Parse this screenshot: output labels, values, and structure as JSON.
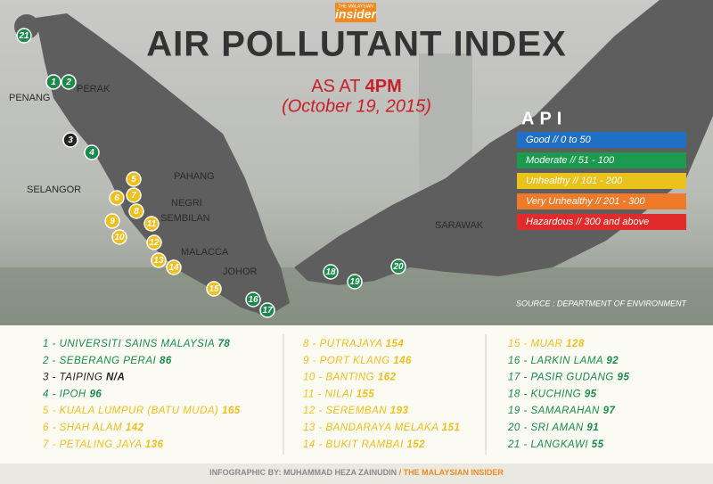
{
  "header": {
    "brand_small": "THE MALAYSIAN",
    "brand": "insider",
    "title": "AIR POLLUTANT INDEX",
    "as_at": "AS AT",
    "time": "4PM",
    "date": "(October 19, 2015)"
  },
  "regions": [
    "PENANG",
    "PERAK",
    "SELANGOR",
    "PAHANG",
    "NEGRI",
    "SEMBILAN",
    "MALACCA",
    "JOHOR",
    "SARAWAK"
  ],
  "legend": {
    "title": "API",
    "items": [
      {
        "label": "Good // 0 to 50",
        "color": "#1f6fc4"
      },
      {
        "label": "Moderate // 51 - 100",
        "color": "#1c9a4e"
      },
      {
        "label": "Unhealthy // 101 - 200",
        "color": "#e9c31c"
      },
      {
        "label": "Very Unhealthy // 201 - 300",
        "color": "#ef7b2a"
      },
      {
        "label": "Hazardous // 300 and above",
        "color": "#e12a2a"
      }
    ]
  },
  "source": "SOURCE : DEPARTMENT OF ENVIRONMENT",
  "stations": [
    {
      "marker": "1",
      "label": "1 - UNIVERSITI SAINS MALAYSIA",
      "reading": "78",
      "color": "#1a8a4a"
    },
    {
      "marker": "2",
      "label": "2 - SEBERANG PERAI",
      "reading": "86",
      "color": "#1a8a4a"
    },
    {
      "marker": "3",
      "label": "3 - TAIPING",
      "reading": "N/A",
      "color": "#222222"
    },
    {
      "marker": "4",
      "label": "4 - IPOH",
      "reading": "96",
      "color": "#1a8a4a"
    },
    {
      "marker": "5",
      "label": "5 - KUALA LUMPUR (BATU MUDA)",
      "reading": "165",
      "color": "#efbf1d"
    },
    {
      "marker": "6",
      "label": "6 - SHAH ALAM",
      "reading": "142",
      "color": "#efbf1d"
    },
    {
      "marker": "7",
      "label": "7 - PETALING JAYA",
      "reading": "136",
      "color": "#efbf1d"
    },
    {
      "marker": "8",
      "label": "8 - PUTRAJAYA",
      "reading": "154",
      "color": "#efbf1d"
    },
    {
      "marker": "9",
      "label": "9 - PORT KLANG",
      "reading": "146",
      "color": "#efbf1d"
    },
    {
      "marker": "10",
      "label": "10 - BANTING",
      "reading": "162",
      "color": "#efbf1d"
    },
    {
      "marker": "11",
      "label": "11 - NILAI",
      "reading": "155",
      "color": "#efbf1d"
    },
    {
      "marker": "12",
      "label": "12 - SEREMBAN",
      "reading": "193",
      "color": "#efbf1d"
    },
    {
      "marker": "13",
      "label": "13 - BANDARAYA MELAKA",
      "reading": "151",
      "color": "#efbf1d"
    },
    {
      "marker": "14",
      "label": "14 - BUKIT RAMBAI",
      "reading": "152",
      "color": "#efbf1d"
    },
    {
      "marker": "15",
      "label": "15 - MUAR",
      "reading": "128",
      "color": "#efbf1d"
    },
    {
      "marker": "16",
      "label": "16 - LARKIN LAMA",
      "reading": "92",
      "color": "#1a8a4a"
    },
    {
      "marker": "17",
      "label": "17 - PASIR GUDANG",
      "reading": "95",
      "color": "#1a8a4a"
    },
    {
      "marker": "18",
      "label": "18 - KUCHING",
      "reading": "95",
      "color": "#1a8a4a"
    },
    {
      "marker": "19",
      "label": "19 - SAMARAHAN",
      "reading": "97",
      "color": "#1a8a4a"
    },
    {
      "marker": "20",
      "label": "20 - SRI AMAN",
      "reading": "91",
      "color": "#1a8a4a"
    },
    {
      "marker": "21",
      "label": "21 - LANGKAWI",
      "reading": "55",
      "color": "#1a8a4a"
    }
  ],
  "footer": {
    "credit": "INFOGRAPHIC BY: MUHAMMAD HEZA ZAINUDIN",
    "publisher": "/ THE MALAYSIAN INSIDER"
  }
}
